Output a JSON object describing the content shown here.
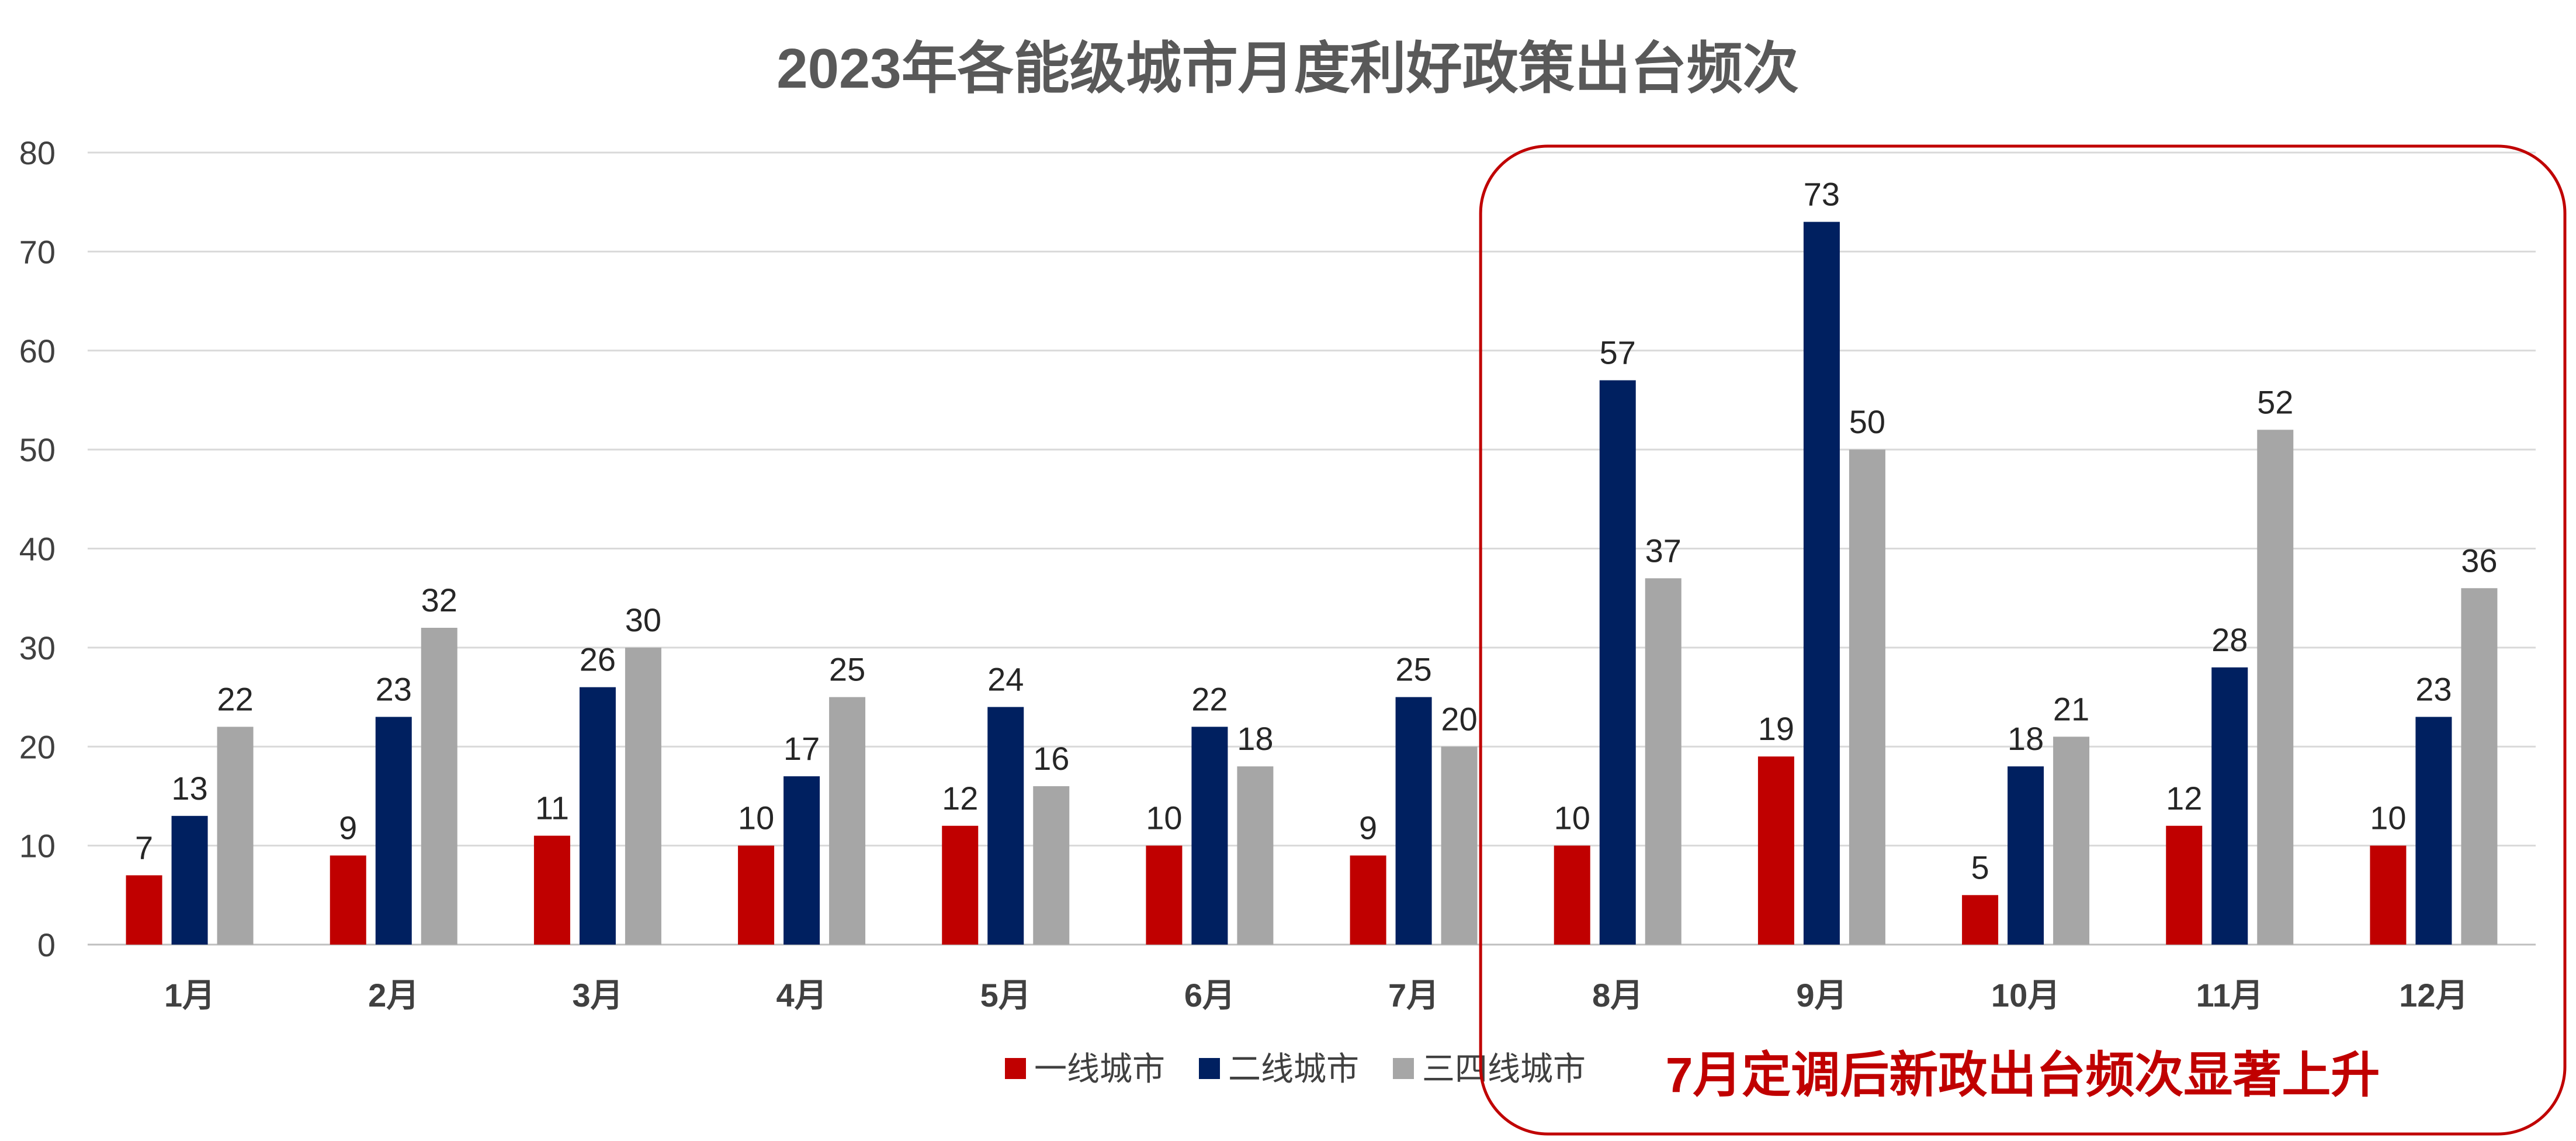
{
  "chart_data": {
    "type": "bar",
    "title": "2023年各能级城市月度利好政策出台频次",
    "xlabel": "",
    "ylabel": "",
    "ylim": [
      0,
      80
    ],
    "yticks": [
      0,
      10,
      20,
      30,
      40,
      50,
      60,
      70,
      80
    ],
    "grid": true,
    "legend_position": "bottom-center",
    "categories": [
      "1月",
      "2月",
      "3月",
      "4月",
      "5月",
      "6月",
      "7月",
      "8月",
      "9月",
      "10月",
      "11月",
      "12月"
    ],
    "series": [
      {
        "name": "一线城市",
        "color": "#c00000",
        "values": [
          7,
          9,
          11,
          10,
          12,
          10,
          9,
          10,
          19,
          5,
          12,
          10
        ]
      },
      {
        "name": "二线城市",
        "color": "#002060",
        "values": [
          13,
          23,
          26,
          17,
          24,
          22,
          25,
          57,
          73,
          18,
          28,
          23
        ]
      },
      {
        "name": "三四线城市",
        "color": "#a6a6a6",
        "values": [
          22,
          32,
          30,
          25,
          16,
          18,
          20,
          37,
          50,
          21,
          52,
          36
        ]
      }
    ],
    "annotation": {
      "text": "7月定调后新政出台频次显著上升",
      "color": "#c00000",
      "highlight_range": [
        "8月",
        "12月"
      ]
    }
  }
}
